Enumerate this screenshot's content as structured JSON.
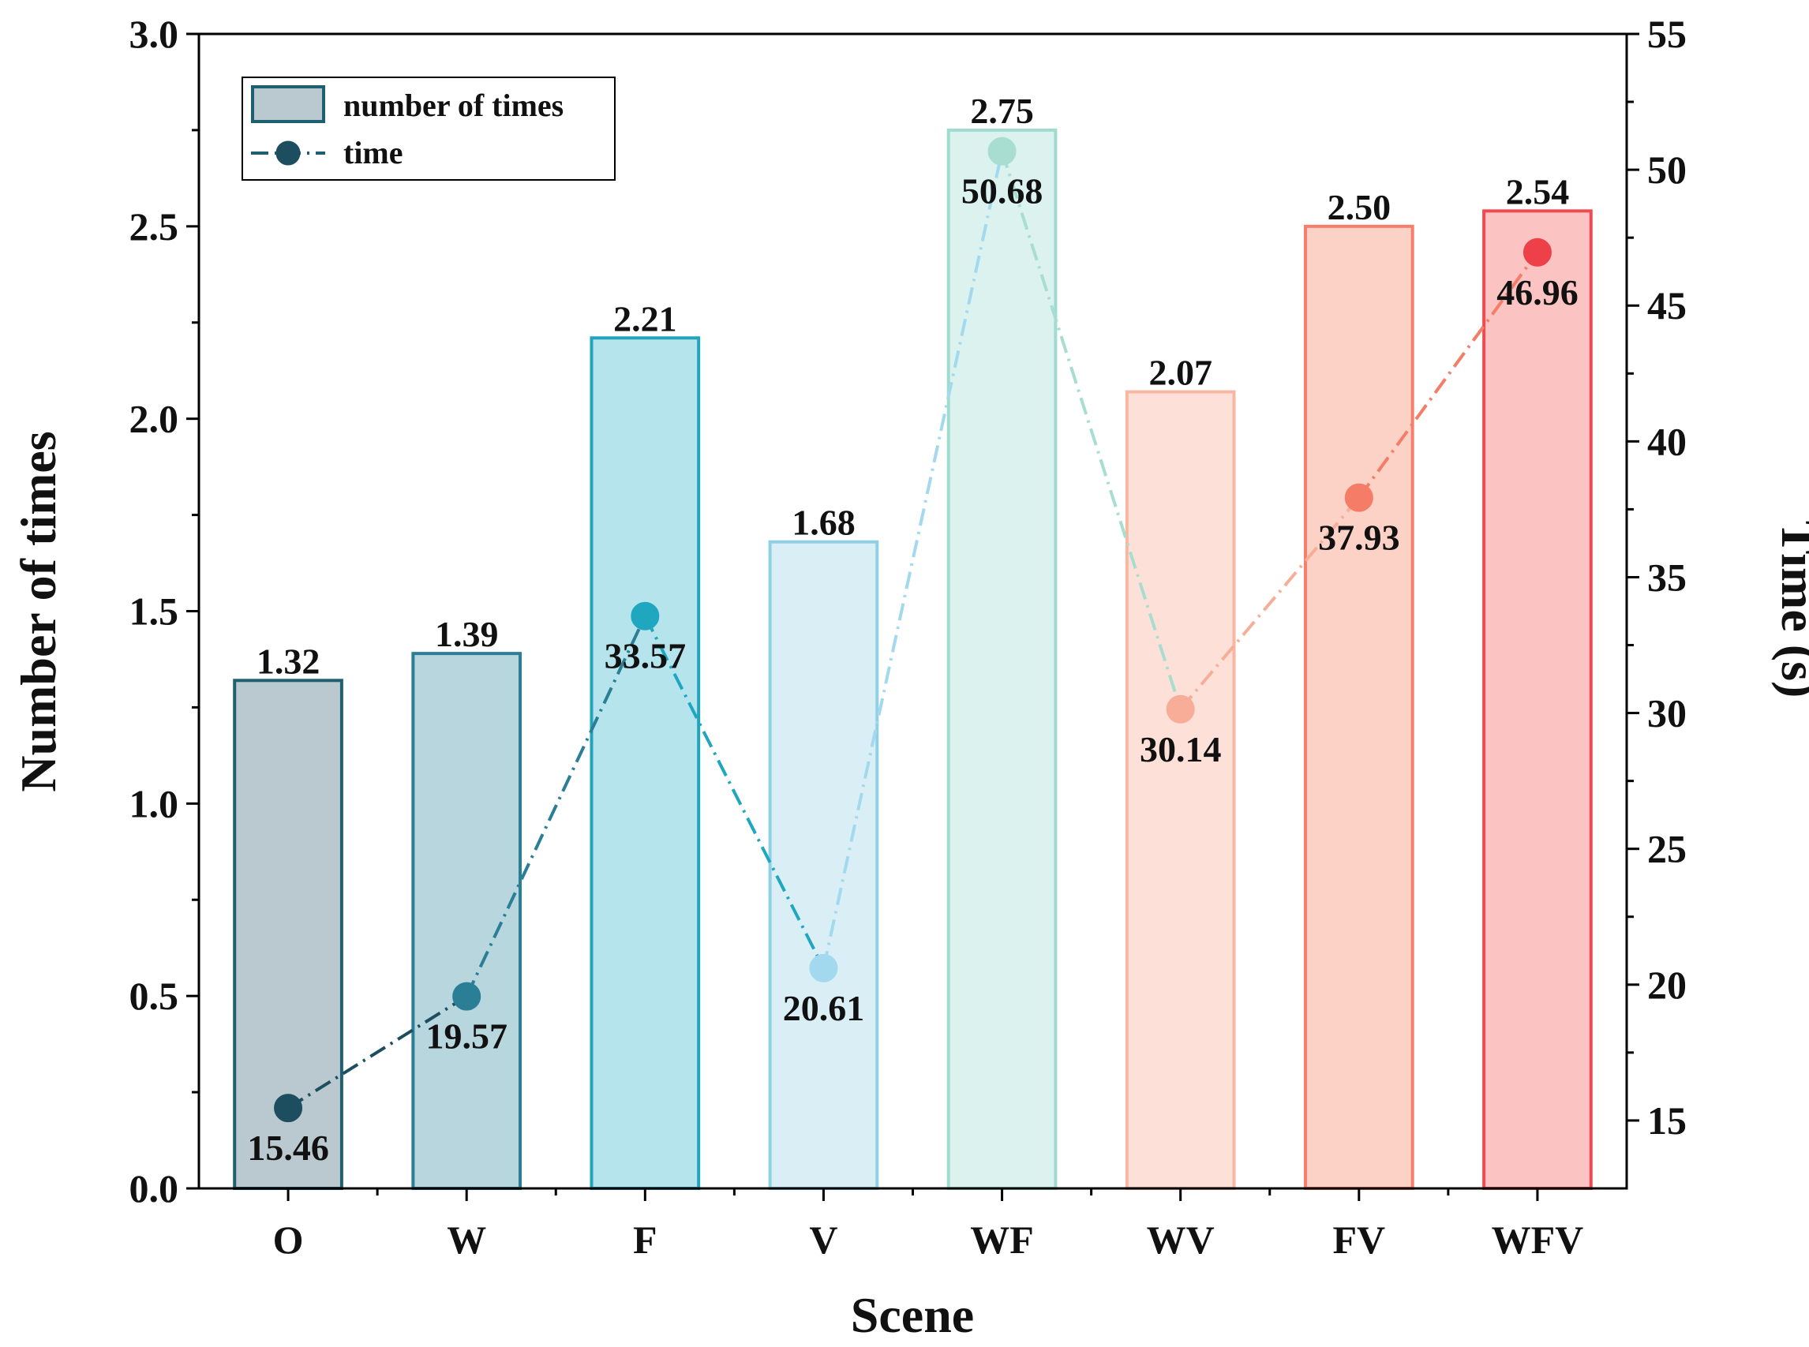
{
  "chart_data": {
    "type": "bar",
    "title": "",
    "xlabel": "Scene",
    "ylabel": "Number of times",
    "y2label": "Time (s)",
    "categories": [
      "O",
      "W",
      "F",
      "V",
      "WF",
      "WV",
      "FV",
      "WFV"
    ],
    "ylim": [
      0,
      3.0
    ],
    "y2lim": [
      12.5,
      55
    ],
    "y_ticks": [
      "0.0",
      "0.5",
      "1.0",
      "1.5",
      "2.0",
      "2.5",
      "3.0"
    ],
    "y2_ticks": [
      "15",
      "20",
      "25",
      "30",
      "35",
      "40",
      "45",
      "50",
      "55"
    ],
    "series": [
      {
        "name": "number of times",
        "type": "bar",
        "axis": "left",
        "values": [
          1.32,
          1.39,
          2.21,
          1.68,
          2.75,
          2.07,
          2.5,
          2.54
        ],
        "labels": [
          "1.32",
          "1.39",
          "2.21",
          "1.68",
          "2.75",
          "2.07",
          "2.50",
          "2.54"
        ]
      },
      {
        "name": "time",
        "type": "line",
        "axis": "right",
        "values": [
          15.46,
          19.57,
          33.57,
          20.61,
          50.68,
          30.14,
          37.93,
          46.96
        ],
        "labels": [
          "15.46",
          "19.57",
          "33.57",
          "20.61",
          "50.68",
          "30.14",
          "37.93",
          "46.96"
        ]
      }
    ],
    "legend": {
      "placement": "top-left",
      "entries": [
        "number of times",
        "time"
      ]
    },
    "colors": {
      "bar_fill": [
        "#b9c9cf",
        "#b8d6de",
        "#b6e4ec",
        "#daeef6",
        "#dbf2ee",
        "#fde0d8",
        "#fcd1c6",
        "#fbc3c2"
      ],
      "bar_stroke": [
        "#1f5f72",
        "#2a7f96",
        "#22a4bd",
        "#8fd0e6",
        "#9fdccf",
        "#f8b7a3",
        "#f67e6b",
        "#ee4b52"
      ],
      "point_fill": [
        "#1c4e60",
        "#2a7f96",
        "#1fa7c0",
        "#a3d9ee",
        "#a8ddd1",
        "#f7ad97",
        "#f57c66",
        "#ee4048"
      ],
      "legend_bar_fill": "#b9c9cf",
      "legend_bar_stroke": "#1f5f72",
      "legend_line_color": "#1f5f72"
    }
  }
}
